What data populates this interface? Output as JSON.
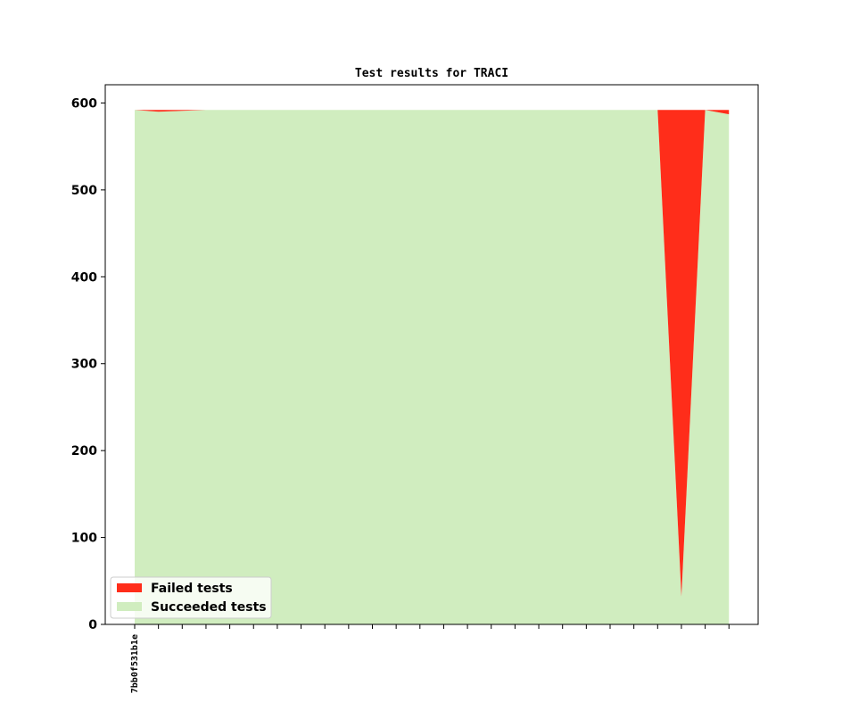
{
  "chart_data": {
    "type": "area",
    "stacked": true,
    "title": "Test results for TRACI",
    "xlabel": "",
    "ylabel": "",
    "ylim": [
      0,
      621
    ],
    "yticks": [
      0,
      100,
      200,
      300,
      400,
      500,
      600
    ],
    "x_tick_labels": [
      "7bb0f531b1e"
    ],
    "num_points": 26,
    "series": [
      {
        "name": "Succeeded tests",
        "color": "#d0edbf",
        "values": [
          592,
          590,
          591,
          592,
          592,
          592,
          592,
          592,
          592,
          592,
          592,
          592,
          592,
          592,
          592,
          592,
          592,
          592,
          592,
          592,
          592,
          592,
          592,
          32,
          592,
          587
        ]
      },
      {
        "name": "Failed tests",
        "color": "#ff2d1a",
        "values": [
          0,
          2,
          1,
          0,
          0,
          0,
          0,
          0,
          0,
          0,
          0,
          0,
          0,
          0,
          0,
          0,
          0,
          0,
          0,
          0,
          0,
          0,
          0,
          560,
          0,
          5
        ]
      }
    ],
    "legend": {
      "position": "lower-left",
      "entries": [
        {
          "label": "Failed tests",
          "color": "#ff2d1a"
        },
        {
          "label": "Succeeded tests",
          "color": "#d0edbf"
        }
      ]
    },
    "grid": false
  }
}
